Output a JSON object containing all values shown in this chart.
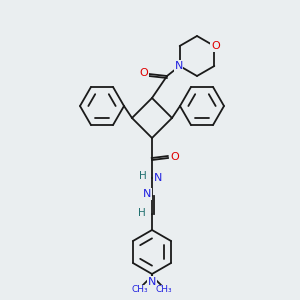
{
  "background_color": "#eaeef0",
  "bond_color": "#1a1a1a",
  "atom_colors": {
    "O": "#e00000",
    "N": "#2020e0",
    "H": "#207070",
    "C": "#1a1a1a"
  },
  "figsize": [
    3.0,
    3.0
  ],
  "dpi": 100
}
